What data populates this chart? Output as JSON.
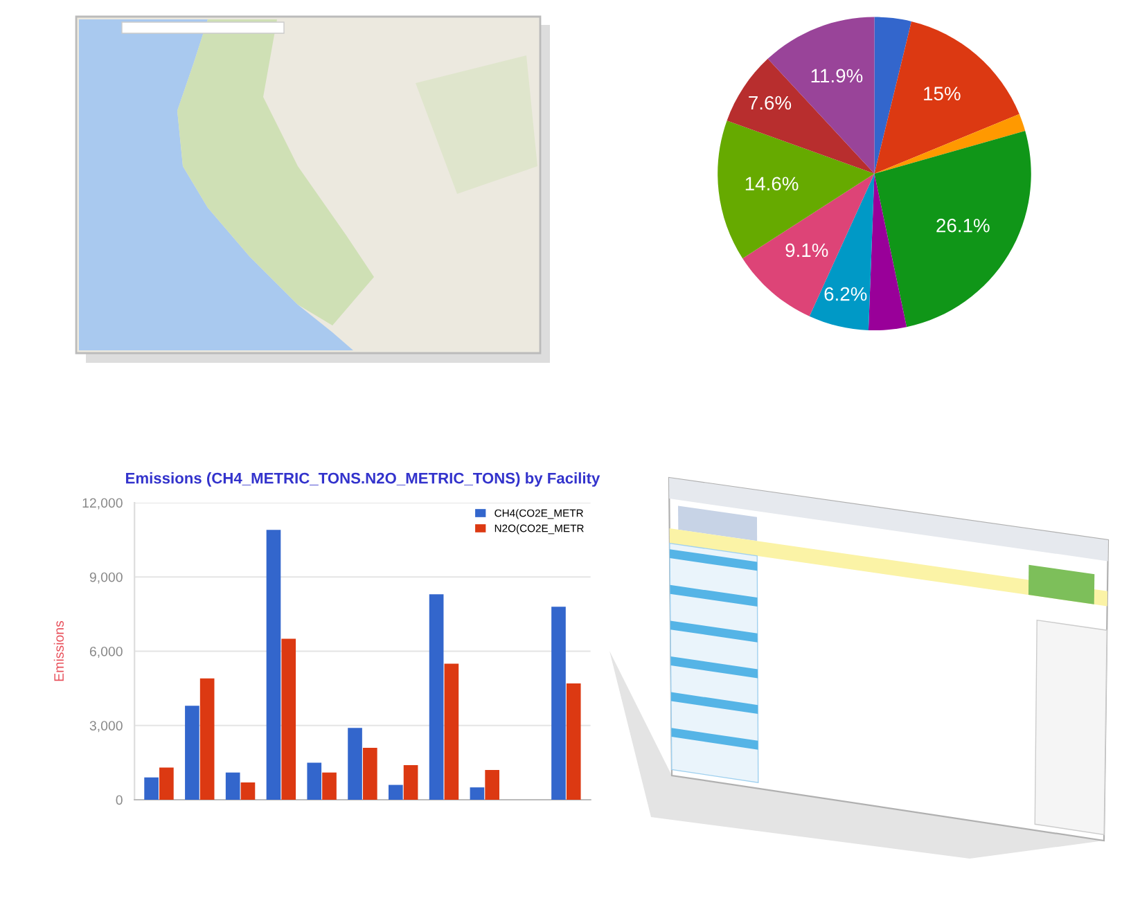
{
  "chart_data": [
    {
      "type": "pie",
      "categories": [
        null,
        null,
        null,
        null,
        null,
        null,
        null,
        null,
        null,
        null
      ],
      "values": [
        3.8,
        15,
        1.8,
        26.1,
        3.9,
        6.2,
        9.1,
        14.6,
        7.6,
        11.9
      ],
      "value_labels": [
        null,
        "15%",
        null,
        "26.1%",
        null,
        "6.2%",
        "9.1%",
        "14.6%",
        "7.6%",
        "11.9%"
      ],
      "colors": [
        "#3366cc",
        "#dc3912",
        "#ff9900",
        "#109618",
        "#990099",
        "#0099c6",
        "#dd4477",
        "#66aa00",
        "#b82e2e",
        "#994499"
      ]
    },
    {
      "type": "bar",
      "title": "Emissions (CH4_METRIC_TONS.N2O_METRIC_TONS) by Facility",
      "ylabel": "Emissions",
      "categories": [
        null,
        null,
        null,
        null,
        null,
        null,
        null,
        null,
        null,
        null,
        null
      ],
      "series": [
        {
          "name": "CH4(CO2E_METR",
          "color": "#3366cc",
          "values": [
            900,
            3800,
            1100,
            10900,
            1500,
            2900,
            600,
            8300,
            500,
            null,
            7800
          ]
        },
        {
          "name": "N2O(CO2E_METR",
          "color": "#dc3912",
          "values": [
            1300,
            4900,
            700,
            6500,
            1100,
            2100,
            1400,
            5500,
            1200,
            null,
            4700
          ]
        }
      ],
      "ylim": [
        0,
        12000
      ],
      "yticks": [
        0,
        {
          "value": 3000,
          "label": "3,000"
        },
        {
          "value": 6000,
          "label": "6,000"
        },
        {
          "value": 9000,
          "label": "9,000"
        },
        {
          "value": 12000,
          "label": "12,000"
        }
      ],
      "grid": "y",
      "legend": "top right",
      "tick_labels": "y"
    }
  ]
}
